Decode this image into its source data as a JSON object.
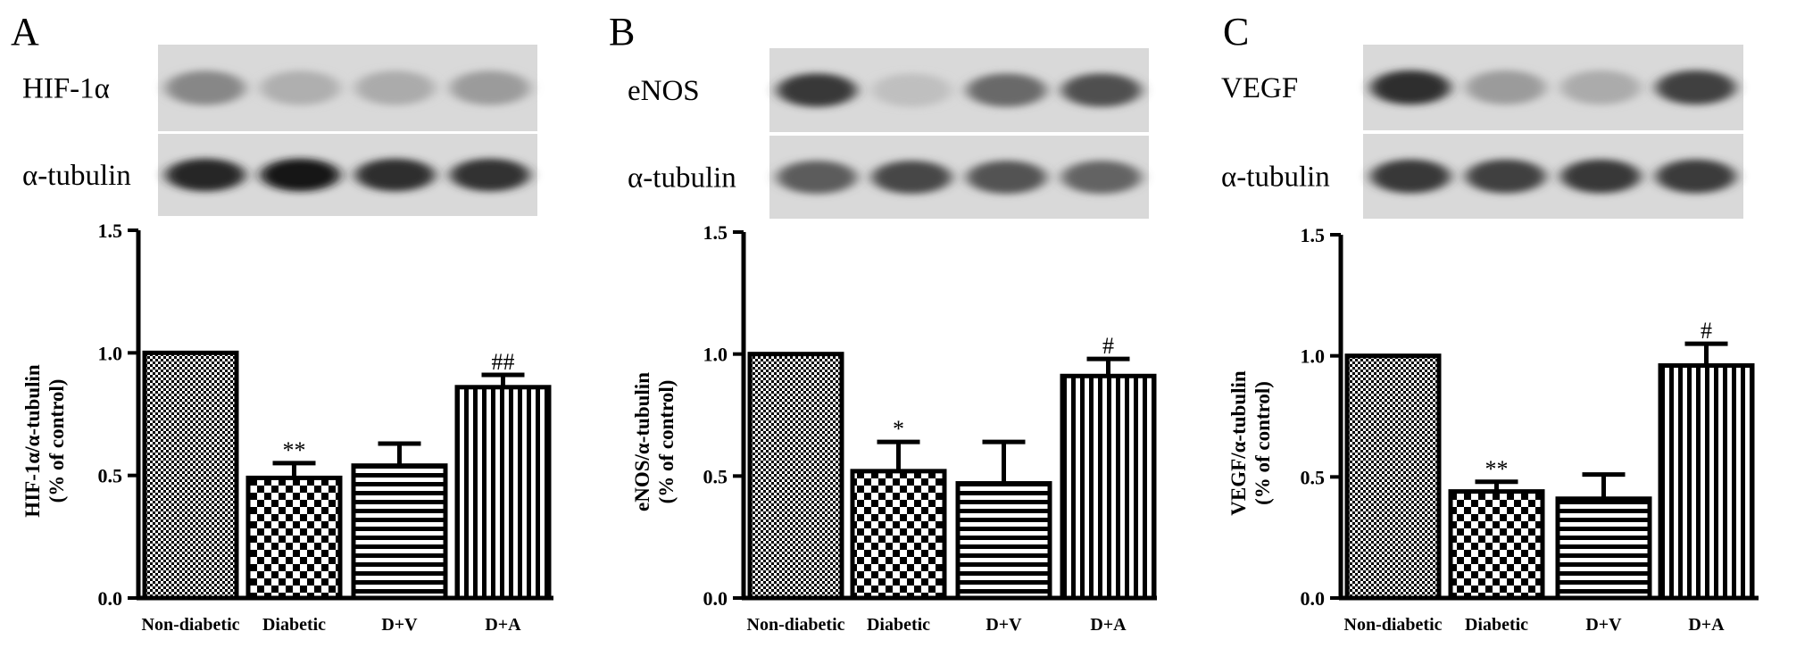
{
  "panels": [
    {
      "letter": "A",
      "bands": [
        {
          "label": "HIF-1α",
          "intensity": [
            0.4,
            0.2,
            0.22,
            0.3
          ]
        },
        {
          "label": "α-tubulin",
          "intensity": [
            0.88,
            0.96,
            0.85,
            0.82
          ]
        }
      ],
      "chart_data": {
        "type": "bar",
        "categories": [
          "Non-diabetic",
          "Diabetic",
          "D+V",
          "D+A"
        ],
        "values": [
          1.0,
          0.49,
          0.54,
          0.86
        ],
        "errors": [
          0,
          0.06,
          0.09,
          0.05
        ],
        "annotations": [
          "",
          "**",
          "",
          "##"
        ],
        "ylabel_line1": "HIF-1α/α-tubulin",
        "ylabel_line2": "(% of control)",
        "yticks": [
          "0.0",
          "0.5",
          "1.0",
          "1.5"
        ],
        "ylim": [
          0,
          1.5
        ],
        "patterns": [
          "dense-check",
          "checker",
          "hstripes",
          "vstripes"
        ]
      }
    },
    {
      "letter": "B",
      "bands": [
        {
          "label": "eNOS",
          "intensity": [
            0.8,
            0.12,
            0.55,
            0.68
          ]
        },
        {
          "label": "α-tubulin",
          "intensity": [
            0.62,
            0.72,
            0.66,
            0.58
          ]
        }
      ],
      "chart_data": {
        "type": "bar",
        "categories": [
          "Non-diabetic",
          "Diabetic",
          "D+V",
          "D+A"
        ],
        "values": [
          1.0,
          0.52,
          0.47,
          0.91
        ],
        "errors": [
          0,
          0.12,
          0.17,
          0.07
        ],
        "annotations": [
          "",
          "*",
          "",
          "#"
        ],
        "ylabel_line1": "eNOS/α-tubulin",
        "ylabel_line2": "(% of control)",
        "yticks": [
          "0.0",
          "0.5",
          "1.0",
          "1.5"
        ],
        "ylim": [
          0,
          1.5
        ],
        "patterns": [
          "dense-check",
          "checker",
          "hstripes",
          "vstripes"
        ]
      }
    },
    {
      "letter": "C",
      "bands": [
        {
          "label": "VEGF",
          "intensity": [
            0.85,
            0.3,
            0.22,
            0.75
          ]
        },
        {
          "label": "α-tubulin",
          "intensity": [
            0.8,
            0.76,
            0.8,
            0.78
          ]
        }
      ],
      "chart_data": {
        "type": "bar",
        "categories": [
          "Non-diabetic",
          "Diabetic",
          "D+V",
          "D+A"
        ],
        "values": [
          1.0,
          0.44,
          0.41,
          0.96
        ],
        "errors": [
          0,
          0.04,
          0.1,
          0.09
        ],
        "annotations": [
          "",
          "**",
          "",
          "#"
        ],
        "ylabel_line1": "VEGF/α-tubulin",
        "ylabel_line2": "(% of control)",
        "yticks": [
          "0.0",
          "0.5",
          "1.0",
          "1.5"
        ],
        "ylim": [
          0,
          1.5
        ],
        "patterns": [
          "dense-check",
          "checker",
          "hstripes",
          "vstripes"
        ]
      }
    }
  ]
}
